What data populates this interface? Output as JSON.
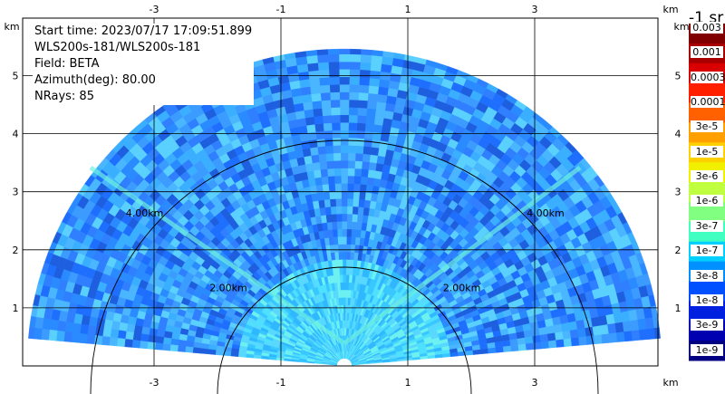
{
  "info": {
    "start_time": "Start time: 2023/07/17 17:09:51.899",
    "instrument": "WLS200s-181/WLS200s-181",
    "field": "Field: BETA",
    "azimuth": "Azimuth(deg): 80.00",
    "nrays": "NRays: 85"
  },
  "axes": {
    "x_ticks": [
      "-3",
      "-1",
      "1",
      "3"
    ],
    "y_ticks": [
      "1",
      "2",
      "3",
      "4",
      "5"
    ],
    "unit": "km"
  },
  "range_rings": [
    "2.00km",
    "4.00km"
  ],
  "colorbar": {
    "title": "-1 sr",
    "labels": [
      "0.003",
      "0.001",
      "0.0003",
      "0.0001",
      "3e-5",
      "1e-5",
      "3e-6",
      "1e-6",
      "3e-7",
      "1e-7",
      "3e-8",
      "1e-8",
      "3e-9",
      "1e-9"
    ],
    "colors": [
      "#800000",
      "#a80000",
      "#d80000",
      "#ff2000",
      "#ff6000",
      "#ffa000",
      "#ffd000",
      "#f0f000",
      "#c0ff40",
      "#80ff80",
      "#40ffc0",
      "#00d0ff",
      "#0090ff",
      "#0050ff",
      "#0020e0",
      "#0000b0",
      "#000080"
    ]
  },
  "palette": {
    "fan": [
      "#2f7fff",
      "#1f6fff",
      "#3c9bff",
      "#2a8aff",
      "#49b6ff",
      "#1e5fe0",
      "#5ad0ff",
      "#3aaeff"
    ],
    "near": [
      "#38c8ff",
      "#4fe0ff",
      "#6cf0f0",
      "#2fb8ff",
      "#58d8ff"
    ],
    "streak": "#6cf0e0"
  }
}
